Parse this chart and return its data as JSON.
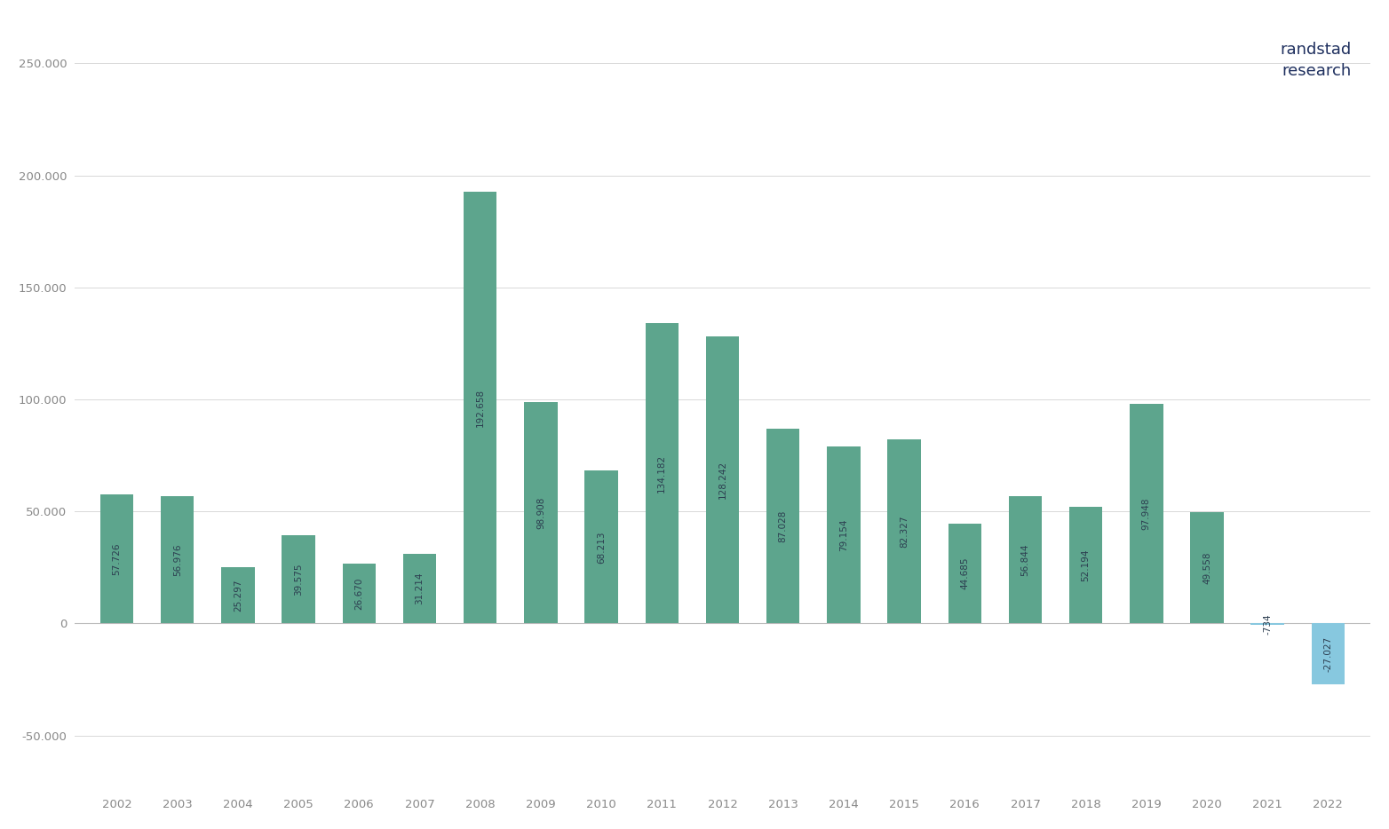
{
  "years": [
    "2002",
    "2003",
    "2004",
    "2005",
    "2006",
    "2007",
    "2008",
    "2009",
    "2010",
    "2011",
    "2012",
    "2013",
    "2014",
    "2015",
    "2016",
    "2017",
    "2018",
    "2019",
    "2020",
    "2021",
    "2022"
  ],
  "values": [
    57726,
    56976,
    25297,
    39575,
    26670,
    31214,
    192658,
    98908,
    68213,
    134182,
    128242,
    87028,
    79154,
    82327,
    44685,
    56844,
    52194,
    97948,
    49558,
    -734,
    -27027
  ],
  "labels": [
    "57.726",
    "56.976",
    "25.297",
    "39.575",
    "26.670",
    "31.214",
    "192.658",
    "98.908",
    "68.213",
    "134.182",
    "128.242",
    "87.028",
    "79.154",
    "82.327",
    "44.685",
    "56.844",
    "52.194",
    "97.948",
    "49.558",
    "-734",
    "-27.027"
  ],
  "bar_color_green": "#5da58d",
  "bar_color_blue": "#87c8df",
  "background_color": "#ffffff",
  "grid_color": "#d8d8d8",
  "label_color": "#2c3e50",
  "tick_color": "#888888",
  "watermark_color": "#1e2f5e",
  "yticks": [
    -50000,
    0,
    50000,
    100000,
    150000,
    200000,
    250000
  ],
  "ytick_labels": [
    "-50.000",
    "0",
    "50.000",
    "100.000",
    "150.000",
    "200.000",
    "250.000"
  ],
  "watermark_line1": "randstad",
  "watermark_line2": "research",
  "ylim_min": -75000,
  "ylim_max": 270000
}
